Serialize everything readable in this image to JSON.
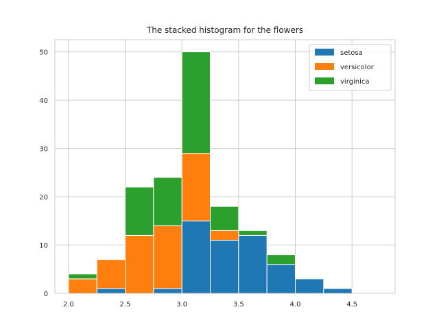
{
  "chart_data": {
    "type": "bar",
    "stacked": true,
    "title": "The stacked histogram for the flowers",
    "xlabel": "",
    "ylabel": "",
    "bin_edges": [
      2.0,
      2.25,
      2.5,
      2.75,
      3.0,
      3.25,
      3.5,
      3.75,
      4.0,
      4.25,
      4.5
    ],
    "xlim": [
      1.88,
      4.88
    ],
    "ylim": [
      0,
      52.5
    ],
    "x_ticks": [
      "2.0",
      "2.5",
      "3.0",
      "3.5",
      "4.0",
      "4.5"
    ],
    "y_ticks": [
      "0",
      "10",
      "20",
      "30",
      "40",
      "50"
    ],
    "grid": true,
    "legend_position": "top-right",
    "series": [
      {
        "name": "setosa",
        "color": "#1f77b4",
        "values": [
          0,
          1,
          0,
          1,
          15,
          11,
          12,
          6,
          3,
          1
        ]
      },
      {
        "name": "versicolor",
        "color": "#ff7f0e",
        "values": [
          3,
          6,
          12,
          13,
          14,
          2,
          0,
          0,
          0,
          0
        ]
      },
      {
        "name": "virginica",
        "color": "#2ca02c",
        "values": [
          1,
          0,
          10,
          10,
          21,
          5,
          1,
          2,
          0,
          0
        ]
      }
    ]
  }
}
